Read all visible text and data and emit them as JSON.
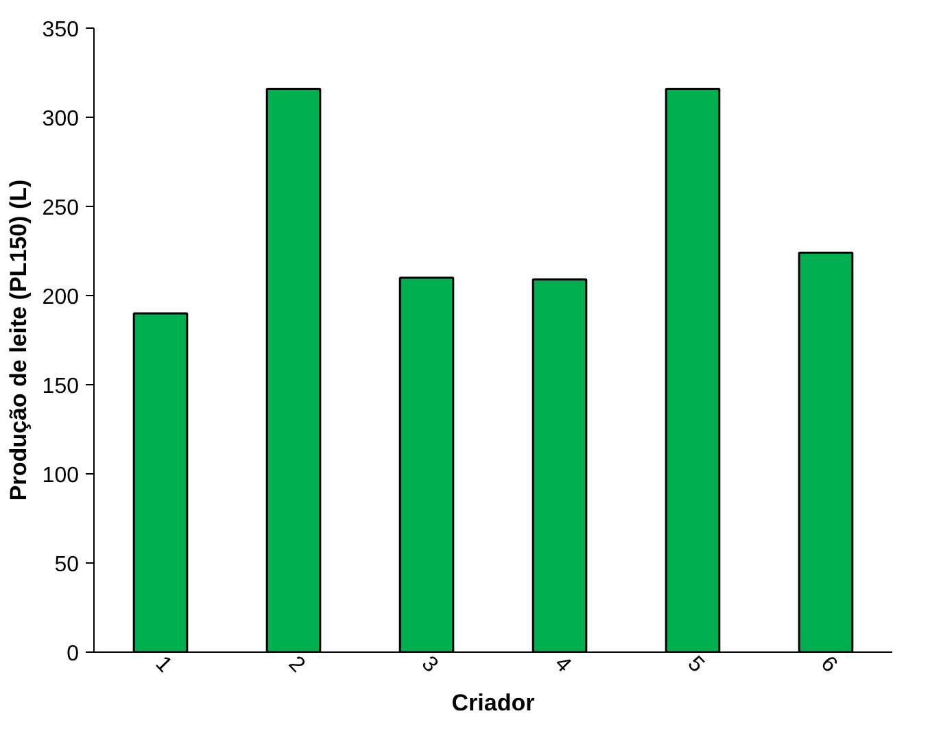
{
  "chart_data": {
    "type": "bar",
    "xlabel": "Criador",
    "ylabel": "Produção de leite (PL150) (L)",
    "categories": [
      "1",
      "2",
      "3",
      "4",
      "5",
      "6"
    ],
    "values": [
      190,
      316,
      210,
      209,
      316,
      224
    ],
    "color": "#00b050",
    "ylim": [
      0,
      350
    ],
    "yticks": [
      0,
      50,
      100,
      150,
      200,
      250,
      300,
      350
    ],
    "grid": false
  }
}
